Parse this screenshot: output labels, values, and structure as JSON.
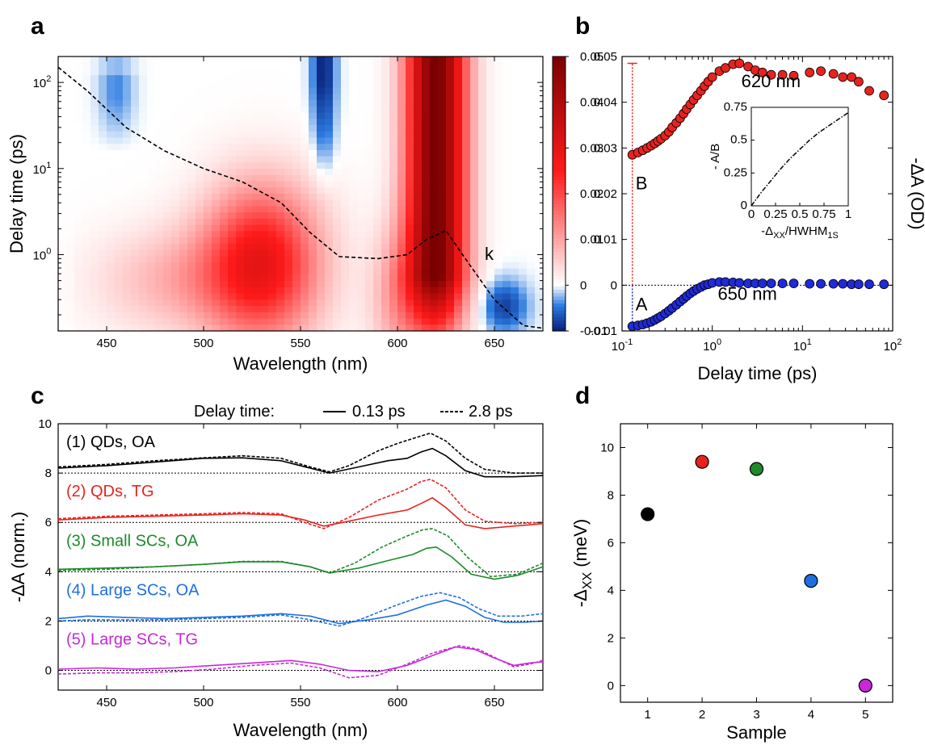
{
  "panels": {
    "a": "a",
    "b": "b",
    "c": "c",
    "d": "d"
  },
  "chart_data": [
    {
      "panel": "a",
      "type": "heatmap",
      "xlabel": "Wavelength (nm)",
      "ylabel": "Delay time (ps)",
      "xlim": [
        425,
        675
      ],
      "xticks": [
        450,
        500,
        550,
        600,
        650
      ],
      "yscale": "log",
      "ylim": [
        0.13,
        200
      ],
      "yticks": [
        {
          "value": 1,
          "base": "10",
          "exp": "0"
        },
        {
          "value": 10,
          "base": "10",
          "exp": "1"
        },
        {
          "value": 100,
          "base": "10",
          "exp": "2"
        }
      ],
      "colorbar": {
        "min": -0.01,
        "max": 0.05,
        "ticks": [
          "0.05",
          "0.04",
          "0.03",
          "0.02",
          "0.01",
          "0",
          "-0.01"
        ],
        "tick_values": [
          0.05,
          0.04,
          0.03,
          0.02,
          0.01,
          0,
          -0.01
        ],
        "colors": [
          "#0a1f7a",
          "#2b7be0",
          "#ffffff",
          "#ff1a1a",
          "#7a0000"
        ]
      },
      "features": [
        {
          "wavelength": 620,
          "peak": 0.05,
          "kind": "bleach"
        },
        {
          "wavelength": 530,
          "peak": 0.028,
          "kind": "bleach"
        },
        {
          "wavelength": 562,
          "peak": -0.01,
          "kind": "absorption"
        },
        {
          "wavelength": 655,
          "peak": -0.008,
          "kind": "absorption"
        },
        {
          "wavelength": 455,
          "peak": -0.004,
          "kind": "absorption"
        }
      ],
      "overlay": {
        "label": "k",
        "style": "dashed",
        "x": [
          425,
          440,
          460,
          480,
          500,
          520,
          540,
          555,
          570,
          590,
          605,
          615,
          625,
          635,
          650,
          665,
          675
        ],
        "y": [
          150,
          80,
          30,
          16,
          10,
          7,
          4,
          1.8,
          0.95,
          0.9,
          1.0,
          1.5,
          1.9,
          0.9,
          0.3,
          0.15,
          0.14
        ]
      }
    },
    {
      "panel": "b",
      "type": "scatter",
      "xlabel": "Delay time (ps)",
      "ylabel": "-ΔA (OD)",
      "xscale": "log",
      "xlim": [
        0.1,
        100
      ],
      "ylim": [
        -0.01,
        0.05
      ],
      "xticks": [
        {
          "value": 0.1,
          "base": "10",
          "exp": "-1"
        },
        {
          "value": 1,
          "base": "10",
          "exp": "0"
        },
        {
          "value": 10,
          "base": "10",
          "exp": "1"
        },
        {
          "value": 100,
          "base": "10",
          "exp": "2"
        }
      ],
      "yticks": [
        "-0.01",
        "0",
        "0.01",
        "0.02",
        "0.03",
        "0.04",
        "0.05"
      ],
      "ytick_values": [
        -0.01,
        0,
        0.01,
        0.02,
        0.03,
        0.04,
        0.05
      ],
      "marker_A": "A",
      "marker_B": "B",
      "series": [
        {
          "name": "620 nm",
          "color": "#e8231f",
          "x": [
            0.13,
            0.15,
            0.17,
            0.19,
            0.21,
            0.23,
            0.25,
            0.27,
            0.3,
            0.33,
            0.36,
            0.4,
            0.44,
            0.48,
            0.52,
            0.57,
            0.62,
            0.68,
            0.75,
            0.82,
            0.9,
            1.0,
            1.2,
            1.4,
            1.7,
            2.0,
            2.5,
            3.0,
            3.6,
            4.5,
            6,
            8,
            12,
            16,
            22,
            28,
            35,
            42,
            55,
            80
          ],
          "y": [
            0.0285,
            0.029,
            0.0295,
            0.03,
            0.0305,
            0.031,
            0.0315,
            0.032,
            0.0327,
            0.0335,
            0.0345,
            0.0355,
            0.0365,
            0.0375,
            0.0385,
            0.0395,
            0.0405,
            0.0415,
            0.0425,
            0.0435,
            0.0445,
            0.0455,
            0.0468,
            0.0475,
            0.0483,
            0.0485,
            0.0478,
            0.047,
            0.0465,
            0.046,
            0.046,
            0.0458,
            0.0465,
            0.0468,
            0.0462,
            0.0455,
            0.0455,
            0.0445,
            0.0425,
            0.0415
          ]
        },
        {
          "name": "650 nm",
          "color": "#1f2ad8",
          "x": [
            0.13,
            0.15,
            0.17,
            0.19,
            0.21,
            0.23,
            0.25,
            0.27,
            0.3,
            0.33,
            0.36,
            0.4,
            0.44,
            0.48,
            0.52,
            0.57,
            0.62,
            0.68,
            0.75,
            0.82,
            0.9,
            1.0,
            1.2,
            1.4,
            1.7,
            2.0,
            2.5,
            3.0,
            3.6,
            4.5,
            6,
            8,
            12,
            16,
            22,
            28,
            35,
            42,
            55,
            80
          ],
          "y": [
            -0.009,
            -0.0088,
            -0.0086,
            -0.0083,
            -0.008,
            -0.0076,
            -0.0072,
            -0.0068,
            -0.0062,
            -0.0056,
            -0.005,
            -0.0043,
            -0.0036,
            -0.003,
            -0.0024,
            -0.0018,
            -0.0013,
            -0.0008,
            -0.0004,
            0.0,
            0.0002,
            0.0005,
            0.0007,
            0.0007,
            0.0006,
            0.0005,
            0.0004,
            0.0004,
            0.0004,
            0.0004,
            0.0004,
            0.0004,
            0.0003,
            0.0003,
            0.0003,
            0.0003,
            0.0002,
            0.0002,
            0.0002,
            0.0002
          ]
        }
      ],
      "inset": {
        "type": "line",
        "style": "dash-dot",
        "xlabel_parts": [
          "-Δ",
          "XX",
          "/HWHM",
          "1S"
        ],
        "ylabel": "- A/B",
        "xlim": [
          0,
          1
        ],
        "ylim": [
          0,
          0.75
        ],
        "xticks": [
          "0",
          "0.25",
          "0.5",
          "0.75",
          "1"
        ],
        "xtick_values": [
          0,
          0.25,
          0.5,
          0.75,
          1
        ],
        "yticks": [
          "0",
          "0.25",
          "0.5",
          "0.75"
        ],
        "ytick_values": [
          0,
          0.25,
          0.5,
          0.75
        ],
        "x": [
          0,
          0.1,
          0.2,
          0.3,
          0.4,
          0.5,
          0.6,
          0.7,
          0.8,
          0.9,
          1.0
        ],
        "y": [
          0,
          0.1,
          0.19,
          0.28,
          0.36,
          0.43,
          0.5,
          0.56,
          0.61,
          0.66,
          0.71
        ]
      }
    },
    {
      "panel": "c",
      "type": "line",
      "xlabel": "Wavelength (nm)",
      "ylabel": "-ΔA (norm.)",
      "xlim": [
        425,
        675
      ],
      "ylim": [
        -0.8,
        10
      ],
      "xticks": [
        450,
        500,
        550,
        600,
        650
      ],
      "yticks": [
        "0",
        "2",
        "4",
        "6",
        "8",
        "10"
      ],
      "ytick_values": [
        0,
        2,
        4,
        6,
        8,
        10
      ],
      "legend": {
        "title": "Delay time:",
        "solid": "0.13 ps",
        "dashed": "2.8 ps"
      },
      "series": [
        {
          "name": "(1) QDs, OA",
          "color": "#000000",
          "offset": 8,
          "solid": {
            "x": [
              425,
              450,
              475,
              500,
              520,
              540,
              555,
              565,
              580,
              595,
              605,
              612,
              618,
              625,
              635,
              645,
              660,
              675
            ],
            "y": [
              8.2,
              8.3,
              8.45,
              8.6,
              8.62,
              8.5,
              8.2,
              8.0,
              8.25,
              8.5,
              8.6,
              8.85,
              9.0,
              8.7,
              8.1,
              7.85,
              7.85,
              7.9
            ]
          },
          "dashed": {
            "x": [
              425,
              450,
              475,
              500,
              520,
              540,
              555,
              565,
              575,
              590,
              600,
              610,
              617,
              625,
              635,
              645,
              660,
              675
            ],
            "y": [
              8.25,
              8.35,
              8.5,
              8.62,
              8.7,
              8.6,
              8.25,
              8.05,
              8.3,
              8.9,
              9.2,
              9.45,
              9.62,
              9.3,
              8.6,
              8.15,
              8.0,
              8.0
            ]
          }
        },
        {
          "name": "(2) QDs, TG",
          "color": "#e8231f",
          "offset": 6,
          "solid": {
            "x": [
              425,
              450,
              475,
              500,
              520,
              540,
              552,
              562,
              575,
              590,
              605,
              613,
              618,
              625,
              635,
              645,
              660,
              675
            ],
            "y": [
              6.1,
              6.2,
              6.25,
              6.3,
              6.35,
              6.3,
              6.1,
              5.85,
              6.05,
              6.3,
              6.5,
              6.8,
              7.0,
              6.6,
              5.9,
              5.75,
              5.85,
              5.95
            ]
          },
          "dashed": {
            "x": [
              425,
              450,
              475,
              500,
              520,
              540,
              552,
              562,
              575,
              590,
              605,
              612,
              617,
              625,
              635,
              645,
              660,
              675
            ],
            "y": [
              6.15,
              6.25,
              6.3,
              6.35,
              6.4,
              6.35,
              6.0,
              5.75,
              6.2,
              6.9,
              7.35,
              7.65,
              7.75,
              7.4,
              6.5,
              6.05,
              5.95,
              6.0
            ]
          }
        },
        {
          "name": "(3) Small SCs, OA",
          "color": "#1e8a2a",
          "offset": 4,
          "solid": {
            "x": [
              425,
              450,
              475,
              500,
              520,
              540,
              555,
              565,
              580,
              595,
              608,
              615,
              620,
              628,
              638,
              650,
              662,
              675
            ],
            "y": [
              4.1,
              4.15,
              4.2,
              4.3,
              4.4,
              4.4,
              4.2,
              3.95,
              4.15,
              4.45,
              4.7,
              4.95,
              5.0,
              4.6,
              3.9,
              3.7,
              3.85,
              4.2
            ]
          },
          "dashed": {
            "x": [
              425,
              450,
              475,
              500,
              520,
              540,
              555,
              565,
              578,
              592,
              605,
              613,
              618,
              626,
              636,
              648,
              662,
              675
            ],
            "y": [
              4.05,
              4.1,
              4.2,
              4.3,
              4.42,
              4.42,
              4.2,
              3.95,
              4.35,
              5.0,
              5.45,
              5.7,
              5.75,
              5.45,
              4.6,
              3.8,
              3.9,
              4.35
            ]
          }
        },
        {
          "name": "(4) Large SCs, OA",
          "color": "#1f6fe0",
          "offset": 2,
          "solid": {
            "x": [
              425,
              440,
              460,
              480,
              500,
              520,
              540,
              555,
              570,
              585,
              600,
              615,
              625,
              635,
              645,
              655,
              665,
              675
            ],
            "y": [
              2.1,
              2.2,
              2.15,
              2.1,
              2.15,
              2.2,
              2.3,
              2.2,
              1.9,
              2.05,
              2.25,
              2.65,
              2.85,
              2.6,
              2.15,
              1.95,
              1.95,
              2.0
            ]
          },
          "dashed": {
            "x": [
              425,
              440,
              460,
              480,
              500,
              520,
              540,
              555,
              570,
              582,
              598,
              612,
              622,
              632,
              642,
              652,
              664,
              675
            ],
            "y": [
              2.0,
              2.05,
              2.05,
              2.05,
              2.1,
              2.15,
              2.25,
              2.05,
              1.8,
              2.1,
              2.6,
              3.0,
              3.15,
              2.95,
              2.5,
              2.2,
              2.2,
              2.3
            ]
          }
        },
        {
          "name": "(5) Large SCs, TG",
          "color": "#c629d6",
          "offset": 0,
          "solid": {
            "x": [
              425,
              445,
              465,
              485,
              505,
              525,
              545,
              560,
              575,
              590,
              605,
              618,
              630,
              640,
              650,
              660,
              668,
              675
            ],
            "y": [
              0.05,
              0.1,
              0.05,
              0.1,
              0.2,
              0.3,
              0.4,
              0.25,
              0.0,
              -0.05,
              0.2,
              0.6,
              0.95,
              0.85,
              0.5,
              0.2,
              0.3,
              0.35
            ]
          },
          "dashed": {
            "x": [
              425,
              445,
              465,
              485,
              505,
              525,
              545,
              560,
              575,
              590,
              605,
              618,
              632,
              642,
              652,
              660,
              668,
              675
            ],
            "y": [
              -0.15,
              -0.1,
              -0.1,
              -0.05,
              0.05,
              0.2,
              0.3,
              0.1,
              -0.3,
              -0.2,
              0.25,
              0.7,
              1.0,
              0.85,
              0.45,
              0.15,
              0.25,
              0.4
            ]
          }
        }
      ]
    },
    {
      "panel": "d",
      "type": "scatter",
      "xlabel": "Sample",
      "ylabel_parts": [
        "-Δ",
        "XX",
        " (meV)"
      ],
      "xlim": [
        0.5,
        5.5
      ],
      "ylim": [
        -0.7,
        11
      ],
      "xticks": [
        "1",
        "2",
        "3",
        "4",
        "5"
      ],
      "xtick_values": [
        1,
        2,
        3,
        4,
        5
      ],
      "yticks": [
        "0",
        "2",
        "4",
        "6",
        "8",
        "10"
      ],
      "ytick_values": [
        0,
        2,
        4,
        6,
        8,
        10
      ],
      "points": [
        {
          "x": 1,
          "y": 7.2,
          "color": "#000000"
        },
        {
          "x": 2,
          "y": 9.4,
          "color": "#e8231f"
        },
        {
          "x": 3,
          "y": 9.1,
          "color": "#1e8a2a"
        },
        {
          "x": 4,
          "y": 4.4,
          "color": "#1f6fe0"
        },
        {
          "x": 5,
          "y": 0.0,
          "color": "#c629d6"
        }
      ]
    }
  ]
}
